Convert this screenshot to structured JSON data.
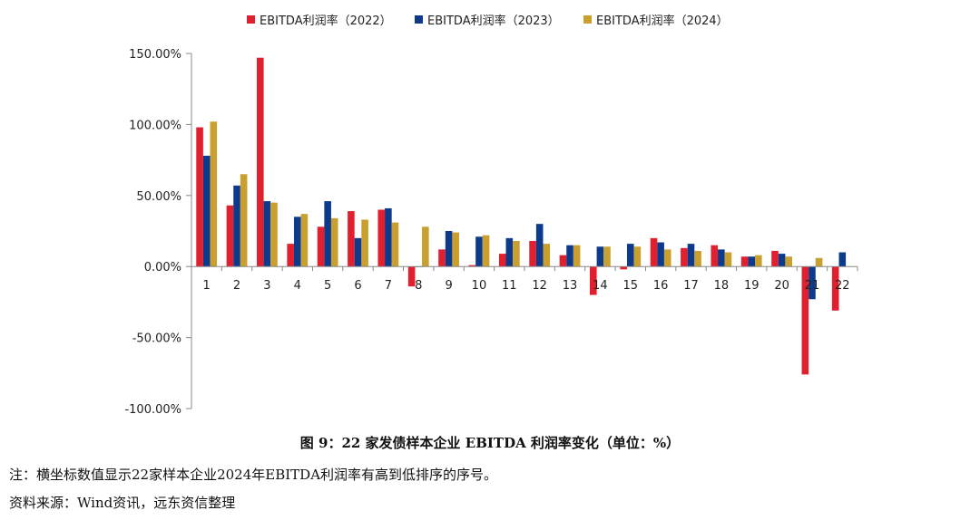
{
  "chart_data": {
    "type": "bar",
    "categories": [
      "1",
      "2",
      "3",
      "4",
      "5",
      "6",
      "7",
      "8",
      "9",
      "10",
      "11",
      "12",
      "13",
      "14",
      "15",
      "16",
      "17",
      "18",
      "19",
      "20",
      "21",
      "22"
    ],
    "series": [
      {
        "name": "EBITDA利润率（2022）",
        "color": "#e0202f",
        "values": [
          98,
          43,
          147,
          16,
          28,
          39,
          40,
          -14,
          12,
          1,
          9,
          18,
          8,
          -20,
          -2,
          20,
          13,
          15,
          7,
          11,
          -76,
          -31
        ]
      },
      {
        "name": "EBITDA利润率（2023）",
        "color": "#0d3a8a",
        "values": [
          78,
          57,
          46,
          35,
          46,
          20,
          41,
          0,
          25,
          21,
          20,
          30,
          15,
          14,
          16,
          17,
          16,
          12,
          7,
          9,
          -23,
          10
        ]
      },
      {
        "name": "EBITDA利润率（2024）",
        "color": "#c9a030",
        "values": [
          102,
          65,
          45,
          37,
          34,
          33,
          31,
          28,
          24,
          22,
          18,
          16,
          15,
          14,
          14,
          12,
          11,
          10,
          8,
          7,
          6,
          null
        ]
      }
    ],
    "yticks": [
      "150.00%",
      "100.00%",
      "50.00%",
      "0.00%",
      "-50.00%",
      "-100.00%"
    ],
    "ytick_values": [
      150,
      100,
      50,
      0,
      -50,
      -100
    ],
    "ylim": [
      -100,
      150
    ],
    "legend_position": "top",
    "grid": false
  },
  "caption": "图 9：22 家发债样本企业 EBITDA 利润率变化（单位：%）",
  "note": "注：横坐标数值显示22家样本企业2024年EBITDA利润率有高到低排序的序号。",
  "source": "资料来源：Wind资讯，远东资信整理"
}
